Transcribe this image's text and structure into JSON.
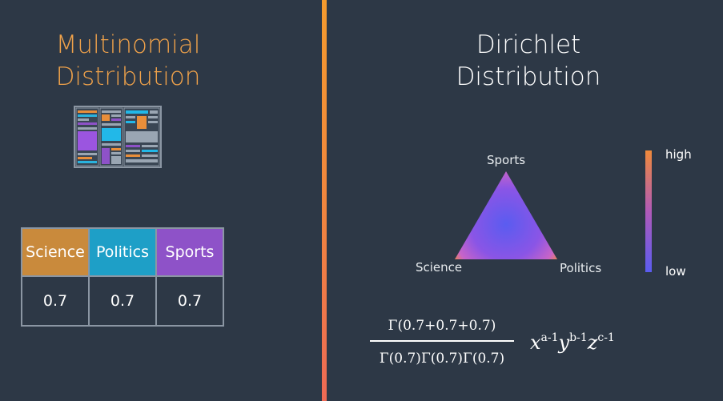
{
  "multinomial": {
    "title_line1": "Multinomial",
    "title_line2": "Distribution",
    "table": {
      "headers": [
        "Science",
        "Politics",
        "Sports"
      ],
      "values": [
        "0.7",
        "0.7",
        "0.7"
      ]
    }
  },
  "dirichlet": {
    "title_line1": "Dirichlet",
    "title_line2": "Distribution",
    "vertices": {
      "top": "Sports",
      "left": "Science",
      "right": "Politics"
    },
    "colorbar": {
      "high": "high",
      "low": "low"
    },
    "formula": {
      "numerator": "Γ(0.7+0.7+0.7)",
      "denominator": "Γ(0.7)Γ(0.7)Γ(0.7)",
      "x": "x",
      "x_exp": "a-1",
      "y": "y",
      "y_exp": "b-1",
      "z": "z",
      "z_exp": "c-1"
    }
  },
  "colors": {
    "background": "#2d3846",
    "accent_orange": "#f0a24a",
    "science": "#c98a3c",
    "politics": "#1e9fc7",
    "sports": "#8e52c8",
    "low_density": "#5a5cf0",
    "high_density": "#f08a3a"
  }
}
